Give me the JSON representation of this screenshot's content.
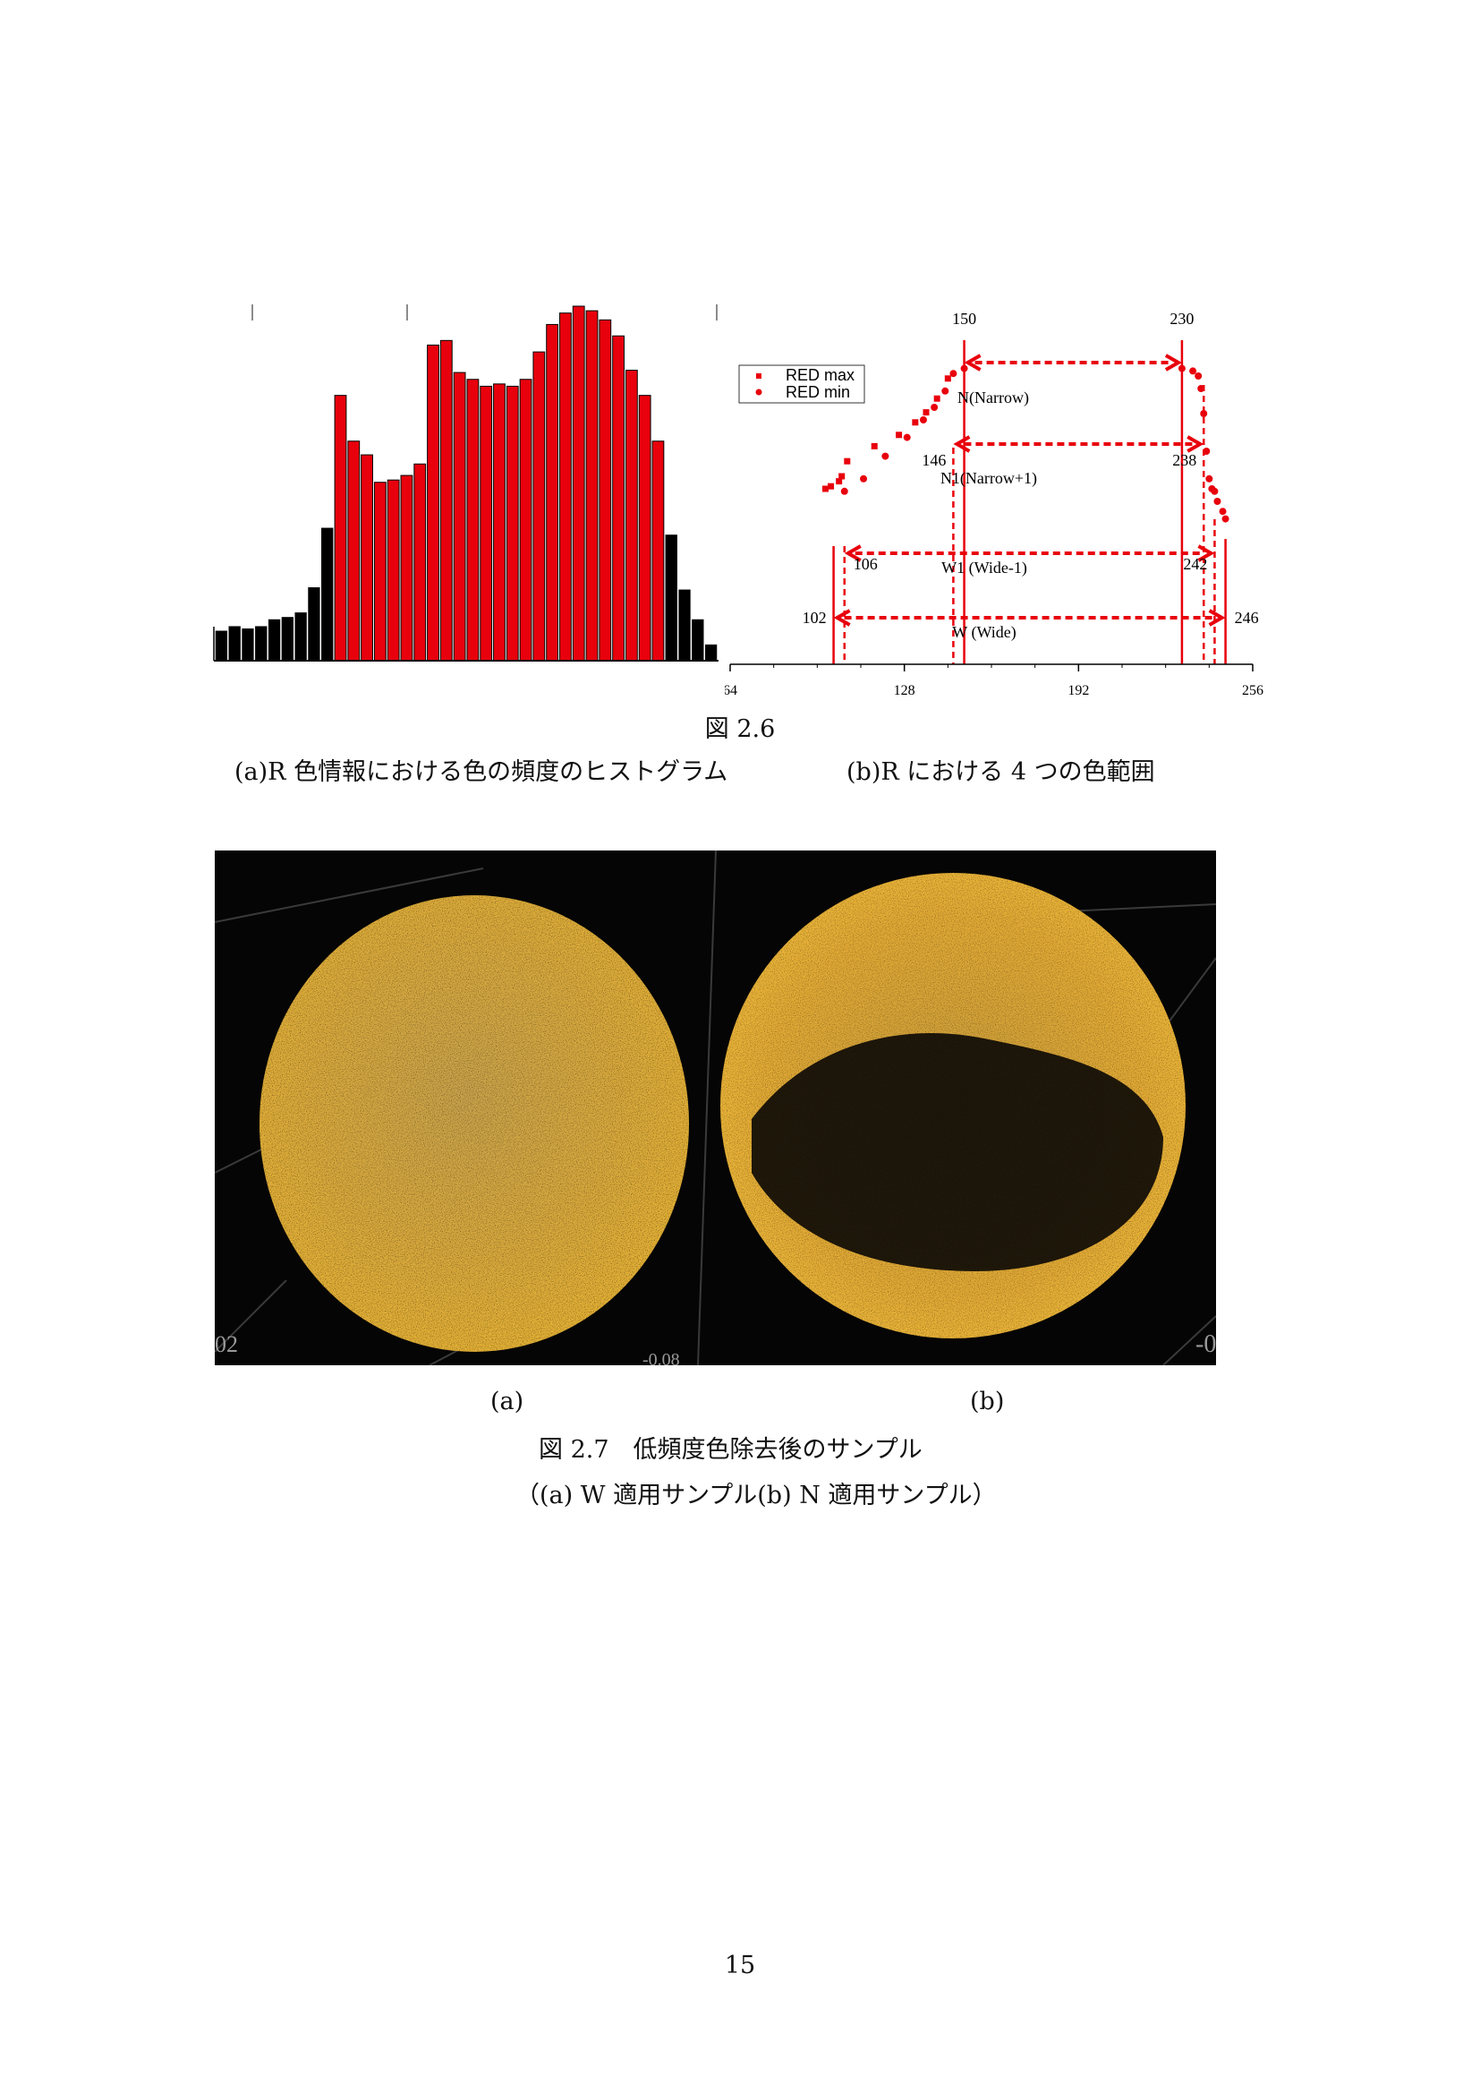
{
  "figure_2_6": {
    "number": "図 2.6",
    "caption_a": "(a)R 色情報における色の頻度のヒストグラム",
    "caption_b": "(b)R における 4 つの色範囲",
    "histogram": {
      "type": "bar",
      "values": [
        13,
        15,
        14,
        15,
        18,
        19,
        21,
        32,
        58,
        116,
        96,
        90,
        78,
        79,
        81,
        86,
        138,
        140,
        126,
        123,
        120,
        121,
        120,
        123,
        135,
        147,
        152,
        155,
        153,
        149,
        142,
        127,
        116,
        96,
        55,
        31,
        18,
        7
      ],
      "highlight_range_start_index": 9,
      "highlight_range_end_index": 33,
      "colors": {
        "highlight": "#e8000c",
        "other": "#000000"
      }
    },
    "range_chart": {
      "type": "scatter",
      "xlim": [
        64,
        256
      ],
      "ticks": [
        "64",
        "128",
        "192",
        "256"
      ],
      "legend": [
        "RED max",
        "RED min"
      ],
      "color": "#e8000c",
      "red_max_points": [
        [
          99,
          140
        ],
        [
          101,
          142
        ],
        [
          104,
          146
        ],
        [
          105,
          150
        ],
        [
          107,
          162
        ],
        [
          117,
          174
        ],
        [
          126,
          183
        ],
        [
          132,
          193
        ],
        [
          136,
          201
        ],
        [
          140,
          212
        ],
        [
          144,
          228
        ]
      ],
      "red_min_points": [
        [
          106,
          138
        ],
        [
          113,
          148
        ],
        [
          121,
          166
        ],
        [
          129,
          181
        ],
        [
          135,
          195
        ],
        [
          139,
          205
        ],
        [
          143,
          218
        ],
        [
          146,
          232
        ],
        [
          150,
          236
        ],
        [
          230,
          236
        ],
        [
          234,
          234
        ],
        [
          236,
          230
        ],
        [
          237,
          220
        ],
        [
          238,
          200
        ],
        [
          239,
          170
        ],
        [
          240,
          148
        ],
        [
          241,
          140
        ],
        [
          242,
          138
        ],
        [
          243,
          130
        ],
        [
          245,
          122
        ],
        [
          246,
          116
        ]
      ],
      "ranges": [
        {
          "name": "N(Narrow)",
          "min": 150,
          "max": 230,
          "min_label": "150",
          "max_label": "230"
        },
        {
          "name": "N1(Narrow+1)",
          "min": 146,
          "max": 238,
          "min_label": "146",
          "max_label": "238"
        },
        {
          "name": "W1 (Wide-1)",
          "min": 106,
          "max": 242,
          "min_label": "106",
          "max_label": "242"
        },
        {
          "name": "W (Wide)",
          "min": 102,
          "max": 246,
          "min_label": "102",
          "max_label": "246"
        }
      ]
    }
  },
  "figure_2_7": {
    "label_a": "(a)",
    "label_b": "(b)",
    "number_title": "図 2.7　低頻度色除去後のサンプル",
    "subcaption": "（(a) W 適用サンプル(b) N 適用サンプル）",
    "photo_text": {
      "left_edge": "02",
      "bottom_axis": "-0.08",
      "right_edge": "-0"
    }
  },
  "page_number": "15"
}
